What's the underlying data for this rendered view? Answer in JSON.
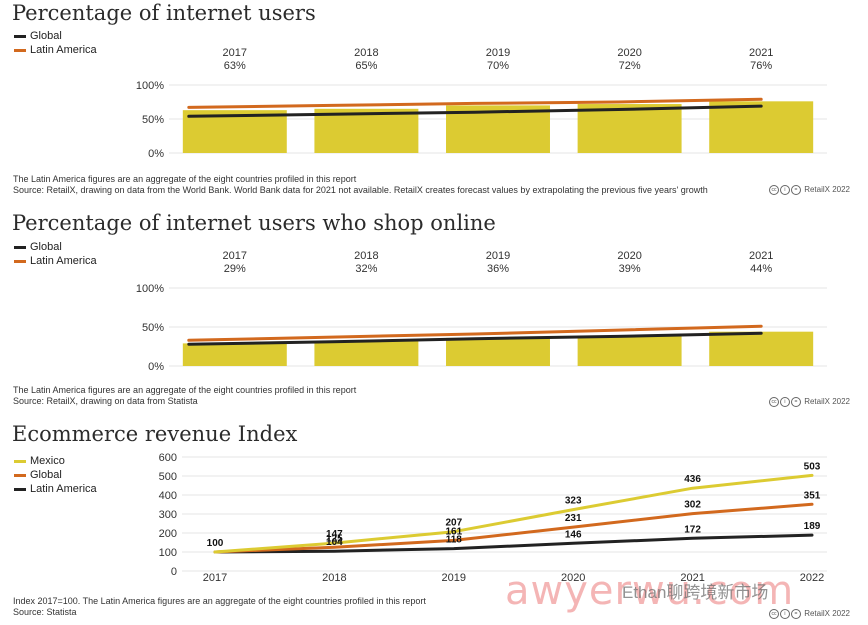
{
  "colors": {
    "bar": "#dccb32",
    "global": "#222222",
    "latam": "#d2691e",
    "mexico": "#dccb32",
    "grid": "#e6e6e6"
  },
  "chart_data": [
    {
      "type": "bar",
      "title": "Percentage of internet users",
      "categories": [
        "2017",
        "2018",
        "2019",
        "2020",
        "2021"
      ],
      "bar_labels": [
        "63%",
        "65%",
        "70%",
        "72%",
        "76%"
      ],
      "values": [
        63,
        65,
        70,
        72,
        76
      ],
      "yticks": [
        "100%",
        "50%",
        "0%"
      ],
      "ylim": [
        0,
        100
      ],
      "lines": [
        {
          "name": "Global",
          "values": [
            54,
            57,
            60,
            64,
            69
          ]
        },
        {
          "name": "Latin America",
          "values": [
            67,
            70,
            73,
            75,
            79
          ]
        }
      ],
      "legend": [
        "Global",
        "Latin America"
      ],
      "notes": [
        "The Latin America figures are an aggregate of the eight countries profiled in this report",
        "Source: RetailX, drawing on data from the World Bank. World Bank data for 2021 not available. RetailX creates forecast values by extrapolating the previous five years' growth"
      ],
      "credit": "RetailX 2022"
    },
    {
      "type": "bar",
      "title": "Percentage of internet users who shop online",
      "categories": [
        "2017",
        "2018",
        "2019",
        "2020",
        "2021"
      ],
      "bar_labels": [
        "29%",
        "32%",
        "36%",
        "39%",
        "44%"
      ],
      "values": [
        29,
        32,
        36,
        39,
        44
      ],
      "yticks": [
        "100%",
        "50%",
        "0%"
      ],
      "ylim": [
        0,
        100
      ],
      "lines": [
        {
          "name": "Global",
          "values": [
            28,
            31,
            35,
            38,
            42
          ]
        },
        {
          "name": "Latin America",
          "values": [
            33,
            37,
            41,
            46,
            51
          ]
        }
      ],
      "legend": [
        "Global",
        "Latin America"
      ],
      "notes": [
        "The Latin America figures are an aggregate of the eight countries profiled in this report",
        "Source: RetailX, drawing on data from Statista"
      ],
      "credit": "RetailX 2022"
    },
    {
      "type": "line",
      "title": "Ecommerce revenue Index",
      "x": [
        "2017",
        "2018",
        "2019",
        "2020",
        "2021",
        "2022"
      ],
      "yticks": [
        "600",
        "500",
        "400",
        "300",
        "200",
        "100",
        "0"
      ],
      "ylim": [
        0,
        600
      ],
      "series": [
        {
          "name": "Mexico",
          "values": [
            100,
            147,
            207,
            323,
            436,
            503
          ]
        },
        {
          "name": "Global",
          "values": [
            100,
            104,
            118,
            146,
            172,
            189
          ]
        },
        {
          "name": "Latin America",
          "values": [
            100,
            125,
            161,
            231,
            302,
            351
          ]
        }
      ],
      "legend": [
        "Mexico",
        "Global",
        "Latin America"
      ],
      "notes": [
        "Index 2017=100. The Latin America figures are an aggregate of the eight countries profiled in this report",
        "Source: Statista"
      ],
      "credit": "RetailX 2022"
    }
  ],
  "watermark": "awyerwu.com",
  "watermark2": "Ethan聊跨境新市场"
}
